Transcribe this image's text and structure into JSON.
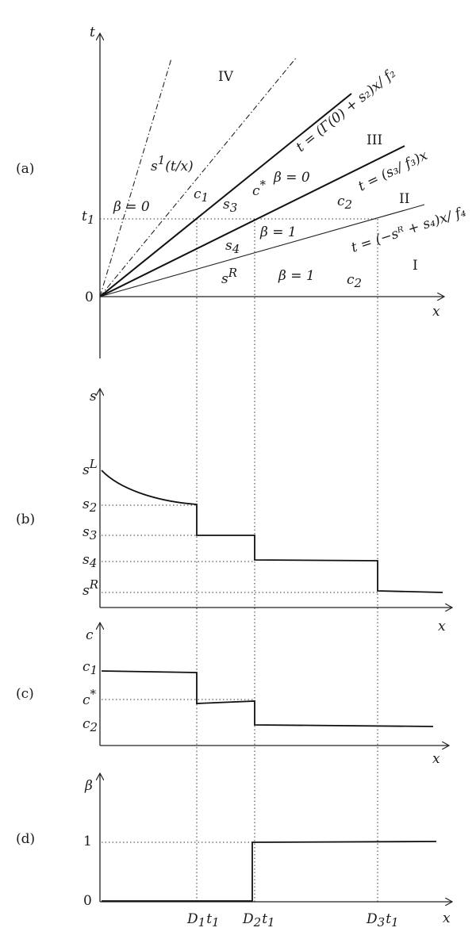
{
  "panels": {
    "a": "(a)",
    "b": "(b)",
    "c": "(c)",
    "d": "(d)"
  },
  "panel_a": {
    "y_axis": "t",
    "x_axis": "x",
    "origin": "0",
    "t1": "t",
    "t1_sub": "1",
    "regions": {
      "I": "I",
      "II": "II",
      "III": "III",
      "IV": "IV"
    },
    "fan_label_s": "s",
    "fan_label_s_sup": "1",
    "fan_label_rest": "(t/x)",
    "beta0_left": "β = 0",
    "beta0_mid": "β = 0",
    "beta1_upper": "β = 1",
    "beta1_lower": "β = 1",
    "c1": "c",
    "c1_sub": "1",
    "s3": "s",
    "s3_sub": "3",
    "cstar": "c",
    "cstar_sup": "*",
    "c2_upper": "c",
    "c2_upper_sub": "2",
    "s4": "s",
    "s4_sub": "4",
    "sR": "s",
    "sR_sup": "R",
    "c2_lower": "c",
    "c2_lower_sub": "2",
    "line_upper": "t = (Γ(0) + s₂)x/ f₂",
    "line_mid": "t = (s₃/ f₃)x",
    "line_lower": "t = (−sᴿ + s₄)x/ f₄"
  },
  "panel_b": {
    "y_axis": "s",
    "x_axis": "x",
    "ticks": [
      {
        "base": "s",
        "sup": "L",
        "sub": ""
      },
      {
        "base": "s",
        "sup": "",
        "sub": "2"
      },
      {
        "base": "s",
        "sup": "",
        "sub": "3"
      },
      {
        "base": "s",
        "sup": "",
        "sub": "4"
      },
      {
        "base": "s",
        "sup": "R",
        "sub": ""
      }
    ]
  },
  "panel_c": {
    "y_axis": "c",
    "x_axis": "x",
    "ticks": [
      {
        "base": "c",
        "sup": "",
        "sub": "1"
      },
      {
        "base": "c",
        "sup": "*",
        "sub": ""
      },
      {
        "base": "c",
        "sup": "",
        "sub": "2"
      }
    ]
  },
  "panel_d": {
    "y_axis": "β",
    "x_axis": "x",
    "tick_one": "1",
    "tick_zero": "0",
    "x_ticks": [
      {
        "D": "D",
        "Dsub": "1",
        "t": "t",
        "tsub": "1"
      },
      {
        "D": "D",
        "Dsub": "2",
        "t": "t",
        "tsub": "1"
      },
      {
        "D": "D",
        "Dsub": "3",
        "t": "t",
        "tsub": "1"
      }
    ]
  }
}
